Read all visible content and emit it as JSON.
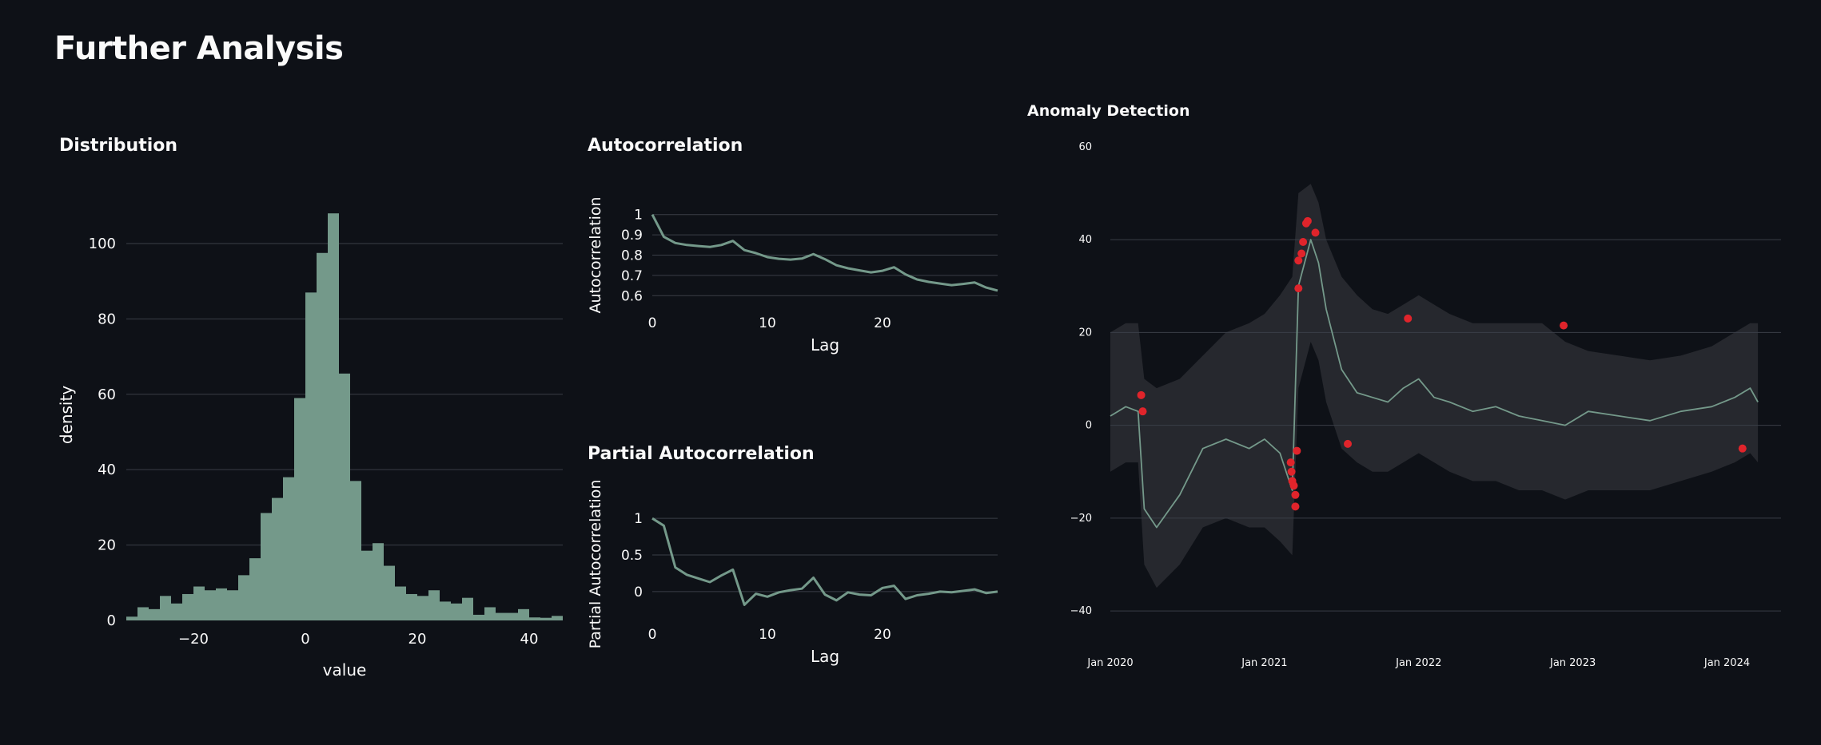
{
  "page": {
    "title": "Further Analysis"
  },
  "colors": {
    "background": "#0e1117",
    "series": "#74998a",
    "anomaly": "#e0242b",
    "band": "#3a3d42",
    "grid": "#3a3e47"
  },
  "chart_data": [
    {
      "id": "distribution",
      "type": "bar",
      "title": "Distribution",
      "xlabel": "value",
      "ylabel": "density",
      "xlim": [
        -32,
        46
      ],
      "ylim": [
        0,
        118
      ],
      "xticks": [
        "−20",
        "0",
        "20",
        "40"
      ],
      "xtick_values": [
        -20,
        0,
        20,
        40
      ],
      "yticks": [
        "0",
        "20",
        "40",
        "60",
        "80",
        "100"
      ],
      "ytick_values": [
        0,
        20,
        40,
        60,
        80,
        100
      ],
      "bin_start": -32,
      "bin_width": 2,
      "values": [
        1,
        3.5,
        3,
        6.5,
        4.5,
        7,
        9,
        8,
        8.5,
        8,
        12,
        16.5,
        28.5,
        32.5,
        38,
        59,
        87,
        97.5,
        108,
        65.5,
        37,
        18.5,
        20.5,
        14.5,
        9,
        7,
        6.5,
        8,
        5,
        4.5,
        6,
        1.5,
        3.5,
        2,
        2,
        3,
        0.8,
        0.7,
        1.2
      ]
    },
    {
      "id": "autocorrelation",
      "type": "line",
      "title": "Autocorrelation",
      "xlabel": "Lag",
      "ylabel": "Autocorrelation",
      "xlim": [
        0,
        30
      ],
      "ylim": [
        0.55,
        1.05
      ],
      "xticks": [
        "0",
        "10",
        "20"
      ],
      "xtick_values": [
        0,
        10,
        20
      ],
      "yticks": [
        "0.6",
        "0.7",
        "0.8",
        "0.9",
        "1"
      ],
      "ytick_values": [
        0.6,
        0.7,
        0.8,
        0.9,
        1
      ],
      "x": [
        0,
        1,
        2,
        3,
        4,
        5,
        6,
        7,
        8,
        9,
        10,
        11,
        12,
        13,
        14,
        15,
        16,
        17,
        18,
        19,
        20,
        21,
        22,
        23,
        24,
        25,
        26,
        27,
        28,
        29,
        30
      ],
      "y": [
        1,
        0.89,
        0.86,
        0.85,
        0.845,
        0.84,
        0.85,
        0.87,
        0.825,
        0.81,
        0.79,
        0.782,
        0.778,
        0.783,
        0.805,
        0.78,
        0.75,
        0.735,
        0.725,
        0.715,
        0.723,
        0.74,
        0.705,
        0.68,
        0.668,
        0.66,
        0.652,
        0.658,
        0.665,
        0.64,
        0.625
      ]
    },
    {
      "id": "partial-autocorrelation",
      "type": "line",
      "title": "Partial Autocorrelation",
      "xlabel": "Lag",
      "ylabel": "Partial Autocorrelation",
      "xlim": [
        0,
        30
      ],
      "ylim": [
        -0.35,
        1.1
      ],
      "xticks": [
        "0",
        "10",
        "20"
      ],
      "xtick_values": [
        0,
        10,
        20
      ],
      "yticks": [
        "0",
        "0.5",
        "1"
      ],
      "ytick_values": [
        0,
        0.5,
        1
      ],
      "x": [
        0,
        1,
        2,
        3,
        4,
        5,
        6,
        7,
        8,
        9,
        10,
        11,
        12,
        13,
        14,
        15,
        16,
        17,
        18,
        19,
        20,
        21,
        22,
        23,
        24,
        25,
        26,
        27,
        28,
        29,
        30
      ],
      "y": [
        1,
        0.9,
        0.33,
        0.23,
        0.18,
        0.13,
        0.22,
        0.3,
        -0.18,
        -0.03,
        -0.07,
        -0.01,
        0.02,
        0.04,
        0.19,
        -0.04,
        -0.12,
        -0.01,
        -0.04,
        -0.05,
        0.05,
        0.08,
        -0.1,
        -0.05,
        -0.03,
        0.0,
        -0.01,
        0.01,
        0.03,
        -0.02,
        0.0
      ]
    },
    {
      "id": "anomaly-detection",
      "type": "line",
      "title": "Anomaly Detection",
      "xlim": [
        2020.0,
        2024.35
      ],
      "ylim": [
        -46,
        61
      ],
      "xticks": [
        "Jan 2020",
        "Jan 2021",
        "Jan 2022",
        "Jan 2023",
        "Jan 2024"
      ],
      "xtick_values": [
        2020,
        2021,
        2022,
        2023,
        2024
      ],
      "yticks": [
        "−40",
        "−20",
        "0",
        "20",
        "40",
        "60"
      ],
      "ytick_values": [
        -40,
        -20,
        0,
        20,
        40,
        60
      ],
      "series": [
        {
          "x": [
            2020.0,
            2020.1,
            2020.18,
            2020.22,
            2020.3,
            2020.45,
            2020.6,
            2020.75,
            2020.9,
            2021.0,
            2021.1,
            2021.18,
            2021.22,
            2021.3,
            2021.35,
            2021.4,
            2021.5,
            2021.6,
            2021.7,
            2021.8,
            2021.9,
            2022.0,
            2022.1,
            2022.2,
            2022.35,
            2022.5,
            2022.65,
            2022.8,
            2022.95,
            2023.1,
            2023.3,
            2023.5,
            2023.7,
            2023.9,
            2024.05,
            2024.15,
            2024.2
          ],
          "y": [
            2,
            4,
            3,
            -18,
            -22,
            -15,
            -5,
            -3,
            -5,
            -3,
            -6,
            -14,
            30,
            40,
            35,
            25,
            12,
            7,
            6,
            5,
            8,
            10,
            6,
            5,
            3,
            4,
            2,
            1,
            0,
            3,
            2,
            1,
            3,
            4,
            6,
            8,
            5
          ]
        }
      ],
      "band_upper": [
        20,
        22,
        22,
        10,
        8,
        10,
        15,
        20,
        22,
        24,
        28,
        32,
        50,
        52,
        48,
        40,
        32,
        28,
        25,
        24,
        26,
        28,
        26,
        24,
        22,
        22,
        22,
        22,
        18,
        16,
        15,
        14,
        15,
        17,
        20,
        22,
        22
      ],
      "band_lower": [
        -10,
        -8,
        -8,
        -30,
        -35,
        -30,
        -22,
        -20,
        -22,
        -22,
        -25,
        -28,
        8,
        18,
        14,
        5,
        -5,
        -8,
        -10,
        -10,
        -8,
        -6,
        -8,
        -10,
        -12,
        -12,
        -14,
        -14,
        -16,
        -14,
        -14,
        -14,
        -12,
        -10,
        -8,
        -6,
        -8
      ],
      "anomalies": {
        "x": [
          2020.2,
          2020.21,
          2021.17,
          2021.175,
          2021.18,
          2021.19,
          2021.2,
          2021.2,
          2021.21,
          2021.22,
          2021.22,
          2021.24,
          2021.25,
          2021.27,
          2021.28,
          2021.33,
          2021.54,
          2021.93,
          2022.94,
          2024.1
        ],
        "y": [
          6.5,
          3,
          -8,
          -10,
          -12,
          -13,
          -15,
          -17.5,
          -5.5,
          29.5,
          35.5,
          37,
          39.5,
          43.5,
          44,
          41.5,
          -4,
          23,
          21.5,
          -5
        ]
      }
    }
  ]
}
